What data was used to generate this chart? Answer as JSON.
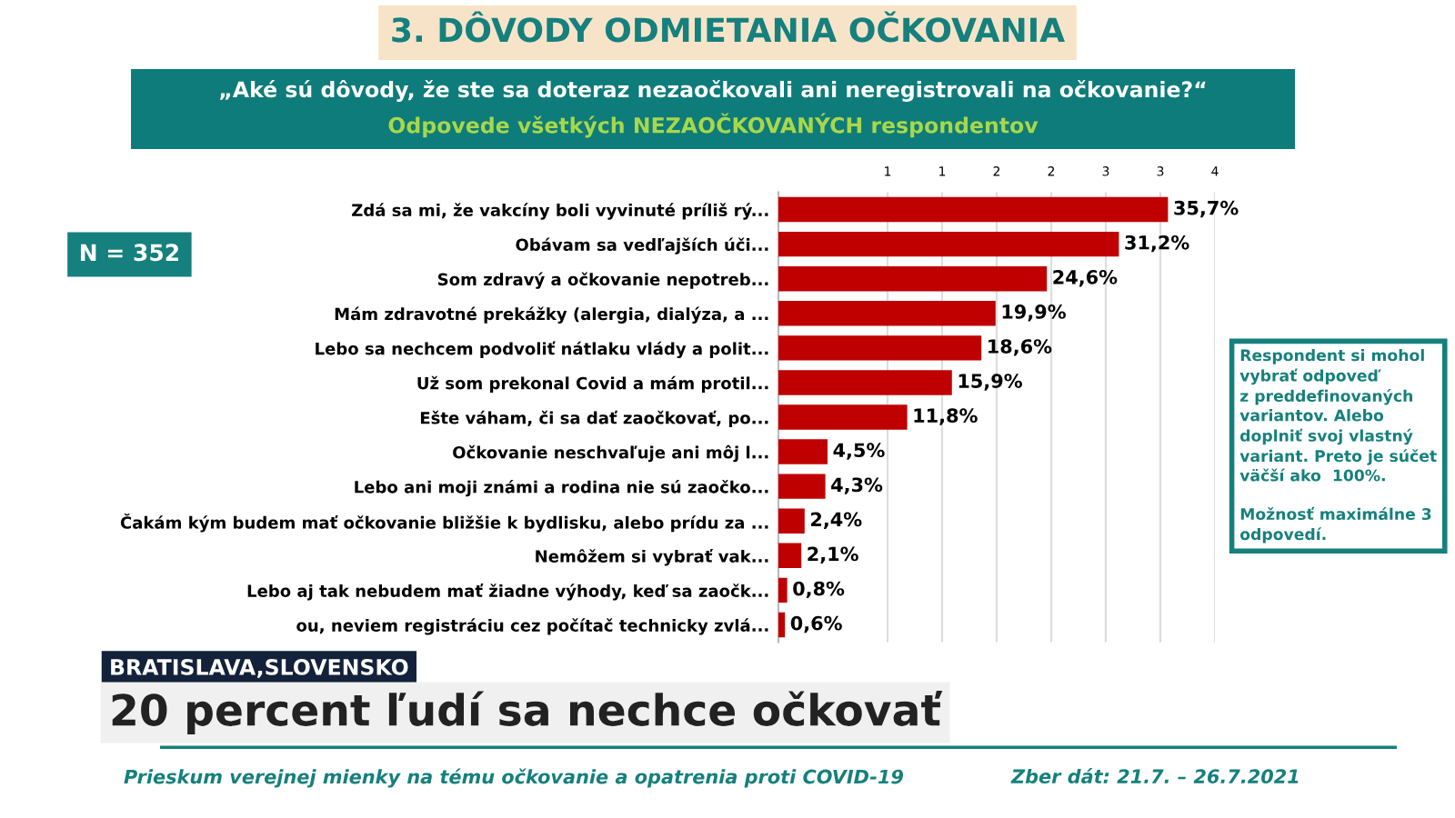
{
  "chart_data": {
    "type": "bar",
    "orientation": "horizontal",
    "title": "3. DÔVODY ODMIETANIA OČKOVANIA",
    "subtitle": "„Aké sú dôvody, že ste sa doteraz nezaočkovali ani neregistrovali na očkovanie?“",
    "categories": [
      "Zdá sa mi, že vakcíny boli vyvinuté príliš rý...",
      "Obávam sa vedľajších úči...",
      "Som zdravý a očkovanie nepotreb...",
      "Mám zdravotné prekážky (alergia, dialýza, a ...",
      "Lebo sa nechcem podvoliť nátlaku vlády a polit...",
      "Už som prekonal Covid a mám protil...",
      "Ešte váham, či sa dať zaočkovať, po...",
      "Očkovanie neschvaľuje ani môj l...",
      "Lebo ani moji známi a rodina nie sú zaočko...",
      "Čakám kým budem mať očkovanie bližšie k bydlisku, alebo prídu za ...",
      "Nemôžem si vybrať vak...",
      "Lebo aj tak nebudem mať žiadne výhody, keď sa zaočk...",
      "ou, neviem registráciu cez počítač technicky zvlá..."
    ],
    "values": [
      35.7,
      31.2,
      24.6,
      19.9,
      18.6,
      15.9,
      11.8,
      4.5,
      4.3,
      2.4,
      2.1,
      0.8,
      0.6
    ],
    "value_labels": [
      "35,7%",
      "31,2%",
      "24,6%",
      "19,9%",
      "18,6%",
      "15,9%",
      "11,8%",
      "4,5%",
      "4,3%",
      "2,4%",
      "2,1%",
      "0,8%",
      "0,6%"
    ],
    "color": "#c00000",
    "xlim": [
      0,
      40
    ],
    "annotations": [
      "Odpovede všetkých NEZAOČKOVANÝCH respondentov",
      "N = 352",
      "Respondent si mohol\nvybrať odpoveď\nz preddefinovaných\nvariantov. Alebo\ndoplniť svoj vlastný\nvariant. Preto je súčet\nväčší ako  100%.\n\nMožnosť maximálne 3\nodpovedí.",
      "BRATISLAVA,SLOVENSKO",
      "20 percent ľudí sa nechce očkovať",
      "Prieskum verejnej mienky na tému očkovanie a opatrenia proti COVID-19",
      "Zber dát: 21.7. – 26.7.2021",
      "1",
      "1",
      "2",
      "2",
      "3",
      "3",
      "4"
    ],
    "xticks": [
      {
        "value": 10,
        "label": null
      },
      {
        "value": 15,
        "label": null
      },
      {
        "value": 20,
        "label": null
      },
      {
        "value": 25,
        "label": null
      },
      {
        "value": 30,
        "label": null
      },
      {
        "value": 35,
        "label": null
      },
      {
        "value": 40,
        "label": null
      }
    ],
    "grid": "x"
  }
}
